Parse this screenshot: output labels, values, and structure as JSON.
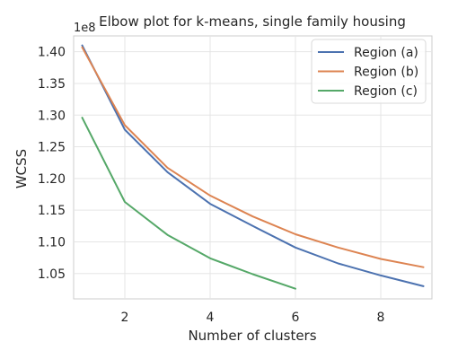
{
  "chart_data": {
    "type": "line",
    "title": "Elbow plot for k-means, single family housing",
    "xlabel": "Number of clusters",
    "ylabel": "WCSS",
    "y_offset_label": "1e8",
    "xlim": [
      0.8,
      9.2
    ],
    "ylim": [
      1.01,
      1.425
    ],
    "x_ticks": [
      2,
      4,
      6,
      8
    ],
    "y_ticks": [
      1.05,
      1.1,
      1.15,
      1.2,
      1.25,
      1.3,
      1.35,
      1.4
    ],
    "grid": true,
    "legend_position": "top-right",
    "series": [
      {
        "name": "Region (a)",
        "color": "#4c72b0",
        "x": [
          1,
          2,
          3,
          4,
          5,
          6,
          7,
          8,
          9
        ],
        "values": [
          1.41,
          1.277,
          1.21,
          1.16,
          1.125,
          1.091,
          1.066,
          1.047,
          1.03
        ]
      },
      {
        "name": "Region (b)",
        "color": "#dd8452",
        "x": [
          1,
          2,
          3,
          4,
          5,
          6,
          7,
          8,
          9
        ],
        "values": [
          1.407,
          1.284,
          1.217,
          1.173,
          1.14,
          1.112,
          1.091,
          1.073,
          1.06
        ]
      },
      {
        "name": "Region (c)",
        "color": "#55a868",
        "x": [
          1,
          2,
          3,
          4,
          5,
          6
        ],
        "values": [
          1.296,
          1.163,
          1.111,
          1.074,
          1.049,
          1.026
        ]
      }
    ]
  }
}
